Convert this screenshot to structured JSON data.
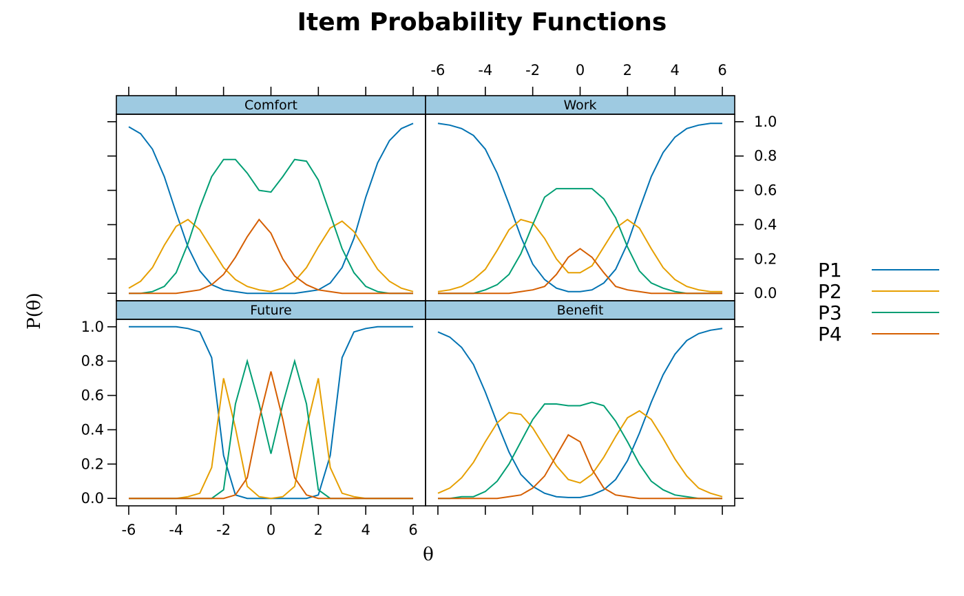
{
  "chart_data": {
    "type": "line",
    "title": "Item Probability Functions",
    "xlabel": "θ",
    "ylabel": "P(θ)",
    "xlim": [
      -6,
      6
    ],
    "ylim": [
      0,
      1
    ],
    "x_ticks": [
      "-6",
      "-4",
      "-2",
      "0",
      "2",
      "4",
      "6"
    ],
    "y_ticks": [
      "0.0",
      "0.2",
      "0.4",
      "0.6",
      "0.8",
      "1.0"
    ],
    "legend_position": "right",
    "series_styles": [
      {
        "name": "P1",
        "color": "#0072B2"
      },
      {
        "name": "P2",
        "color": "#E69F00"
      },
      {
        "name": "P3",
        "color": "#009E73"
      },
      {
        "name": "P4",
        "color": "#D55E00"
      }
    ],
    "x": [
      -6,
      -5.5,
      -5,
      -4.5,
      -4,
      -3.5,
      -3,
      -2.5,
      -2,
      -1.5,
      -1,
      -0.5,
      0,
      0.5,
      1,
      1.5,
      2,
      2.5,
      3,
      3.5,
      4,
      4.5,
      5,
      5.5,
      6
    ],
    "panels": [
      {
        "label": "Future",
        "series": [
          {
            "name": "P1",
            "values": [
              1,
              1,
              1,
              1,
              1,
              0.99,
              0.97,
              0.82,
              0.25,
              0.02,
              0,
              0,
              0,
              0,
              0,
              0,
              0.02,
              0.25,
              0.82,
              0.97,
              0.99,
              1,
              1,
              1,
              1
            ]
          },
          {
            "name": "P2",
            "values": [
              0,
              0,
              0,
              0,
              0,
              0.01,
              0.03,
              0.18,
              0.7,
              0.41,
              0.07,
              0.01,
              0,
              0.01,
              0.07,
              0.41,
              0.7,
              0.18,
              0.03,
              0.01,
              0,
              0,
              0,
              0,
              0
            ]
          },
          {
            "name": "P3",
            "values": [
              0,
              0,
              0,
              0,
              0,
              0,
              0,
              0,
              0.05,
              0.55,
              0.8,
              0.55,
              0.26,
              0.55,
              0.8,
              0.55,
              0.05,
              0,
              0,
              0,
              0,
              0,
              0,
              0,
              0
            ]
          },
          {
            "name": "P4",
            "values": [
              0,
              0,
              0,
              0,
              0,
              0,
              0,
              0,
              0,
              0.02,
              0.12,
              0.46,
              0.74,
              0.46,
              0.12,
              0.02,
              0,
              0,
              0,
              0,
              0,
              0,
              0,
              0,
              0
            ]
          }
        ]
      },
      {
        "label": "Benefit",
        "series": [
          {
            "name": "P1",
            "values": [
              0.97,
              0.94,
              0.88,
              0.78,
              0.62,
              0.44,
              0.27,
              0.14,
              0.07,
              0.03,
              0.01,
              0.005,
              0.005,
              0.02,
              0.05,
              0.11,
              0.22,
              0.38,
              0.56,
              0.72,
              0.84,
              0.92,
              0.96,
              0.98,
              0.99
            ]
          },
          {
            "name": "P2",
            "values": [
              0.03,
              0.06,
              0.12,
              0.21,
              0.33,
              0.44,
              0.5,
              0.49,
              0.41,
              0.3,
              0.19,
              0.11,
              0.09,
              0.14,
              0.24,
              0.36,
              0.47,
              0.51,
              0.46,
              0.35,
              0.23,
              0.13,
              0.06,
              0.03,
              0.01
            ]
          },
          {
            "name": "P3",
            "values": [
              0,
              0,
              0.01,
              0.01,
              0.04,
              0.1,
              0.2,
              0.33,
              0.46,
              0.55,
              0.55,
              0.54,
              0.54,
              0.56,
              0.54,
              0.45,
              0.33,
              0.2,
              0.1,
              0.05,
              0.02,
              0.01,
              0,
              0,
              0
            ]
          },
          {
            "name": "P4",
            "values": [
              0,
              0,
              0,
              0,
              0,
              0,
              0.01,
              0.02,
              0.06,
              0.13,
              0.25,
              0.37,
              0.33,
              0.17,
              0.06,
              0.02,
              0.01,
              0,
              0,
              0,
              0,
              0,
              0,
              0,
              0
            ]
          }
        ]
      },
      {
        "label": "Comfort",
        "series": [
          {
            "name": "P1",
            "values": [
              0.97,
              0.93,
              0.84,
              0.68,
              0.47,
              0.27,
              0.13,
              0.05,
              0.02,
              0.01,
              0,
              0,
              0,
              0,
              0,
              0.01,
              0.02,
              0.06,
              0.15,
              0.32,
              0.56,
              0.76,
              0.89,
              0.96,
              0.99
            ]
          },
          {
            "name": "P2",
            "values": [
              0.03,
              0.07,
              0.15,
              0.28,
              0.39,
              0.43,
              0.37,
              0.26,
              0.15,
              0.08,
              0.04,
              0.02,
              0.01,
              0.03,
              0.07,
              0.15,
              0.27,
              0.38,
              0.42,
              0.36,
              0.25,
              0.14,
              0.07,
              0.03,
              0.01
            ]
          },
          {
            "name": "P3",
            "values": [
              0,
              0,
              0.01,
              0.04,
              0.12,
              0.29,
              0.5,
              0.68,
              0.78,
              0.78,
              0.7,
              0.6,
              0.59,
              0.68,
              0.78,
              0.77,
              0.66,
              0.46,
              0.26,
              0.12,
              0.04,
              0.01,
              0,
              0,
              0
            ]
          },
          {
            "name": "P4",
            "values": [
              0,
              0,
              0,
              0,
              0,
              0.01,
              0.02,
              0.05,
              0.11,
              0.21,
              0.33,
              0.43,
              0.35,
              0.2,
              0.1,
              0.05,
              0.02,
              0.01,
              0,
              0,
              0,
              0,
              0,
              0,
              0
            ]
          }
        ]
      },
      {
        "label": "Work",
        "series": [
          {
            "name": "P1",
            "values": [
              0.99,
              0.98,
              0.96,
              0.92,
              0.84,
              0.7,
              0.52,
              0.33,
              0.17,
              0.08,
              0.03,
              0.01,
              0.01,
              0.02,
              0.06,
              0.14,
              0.29,
              0.49,
              0.68,
              0.82,
              0.91,
              0.96,
              0.98,
              0.99,
              0.99
            ]
          },
          {
            "name": "P2",
            "values": [
              0.01,
              0.02,
              0.04,
              0.08,
              0.14,
              0.25,
              0.37,
              0.43,
              0.41,
              0.32,
              0.2,
              0.12,
              0.12,
              0.16,
              0.27,
              0.38,
              0.43,
              0.38,
              0.26,
              0.15,
              0.08,
              0.04,
              0.02,
              0.01,
              0.01
            ]
          },
          {
            "name": "P3",
            "values": [
              0,
              0,
              0,
              0,
              0.02,
              0.05,
              0.11,
              0.23,
              0.4,
              0.56,
              0.61,
              0.61,
              0.61,
              0.61,
              0.55,
              0.44,
              0.27,
              0.13,
              0.06,
              0.03,
              0.01,
              0,
              0,
              0,
              0
            ]
          },
          {
            "name": "P4",
            "values": [
              0,
              0,
              0,
              0,
              0,
              0,
              0,
              0.01,
              0.02,
              0.04,
              0.11,
              0.21,
              0.26,
              0.21,
              0.12,
              0.04,
              0.02,
              0.01,
              0,
              0,
              0,
              0,
              0,
              0,
              0
            ]
          }
        ]
      }
    ]
  }
}
